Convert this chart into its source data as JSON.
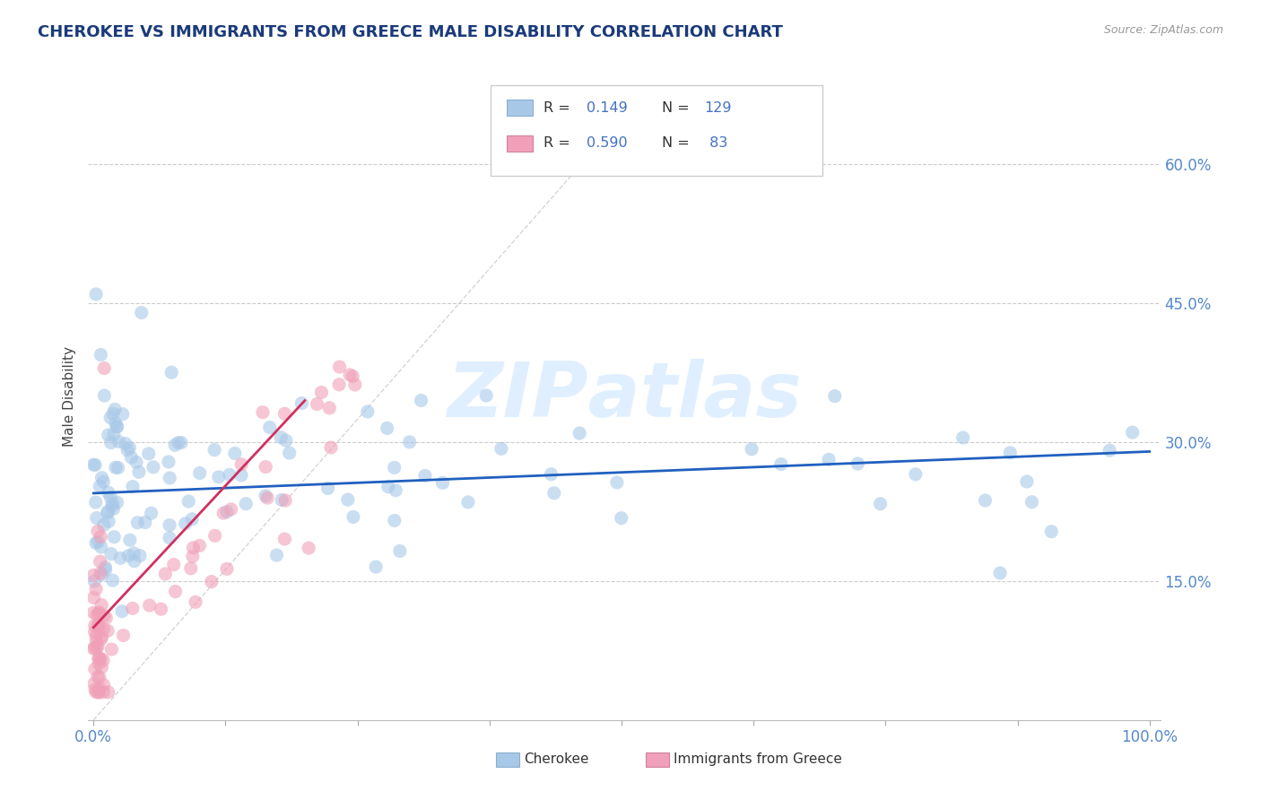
{
  "title": "CHEROKEE VS IMMIGRANTS FROM GREECE MALE DISABILITY CORRELATION CHART",
  "source": "Source: ZipAtlas.com",
  "ylabel": "Male Disability",
  "ytick_values": [
    0.15,
    0.3,
    0.45,
    0.6
  ],
  "ytick_labels": [
    "15.0%",
    "30.0%",
    "45.0%",
    "60.0%"
  ],
  "cherokee_color": "#a8c8e8",
  "immigrants_color": "#f0a0b8",
  "trend_cherokee_color": "#2060c0",
  "trend_immigrants_color": "#d03060",
  "diag_color": "#cccccc",
  "background_color": "#ffffff",
  "title_color": "#1a3a7a",
  "source_color": "#999999",
  "ylabel_color": "#444444",
  "tick_color": "#5588cc",
  "watermark_color": "#ddeeff",
  "grid_color": "#cccccc",
  "legend_box_color": "#dddddd",
  "legend_r_color": "#333333",
  "legend_n_color": "#4472c4"
}
